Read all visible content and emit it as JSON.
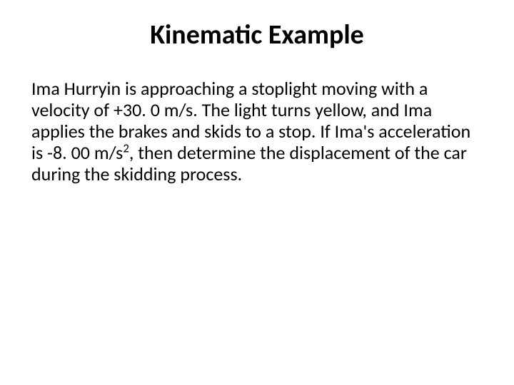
{
  "slide": {
    "title": "Kinematic Example",
    "body_pre": "Ima Hurryin is approaching a stoplight moving with a velocity of +30. 0 m/s. The light turns yellow, and Ima applies the brakes and skids to a stop. If Ima's acceleration is -8. 00 m/s",
    "body_sup": "2",
    "body_post": ", then determine the displacement of the car during the skidding process."
  },
  "style": {
    "background_color": "#ffffff",
    "text_color": "#000000",
    "title_fontsize": 38,
    "title_fontweight": 700,
    "body_fontsize": 26,
    "body_fontweight": 400,
    "font_family": "Calibri, 'Segoe UI', Arial, sans-serif",
    "slide_width": 720,
    "slide_height": 540
  }
}
